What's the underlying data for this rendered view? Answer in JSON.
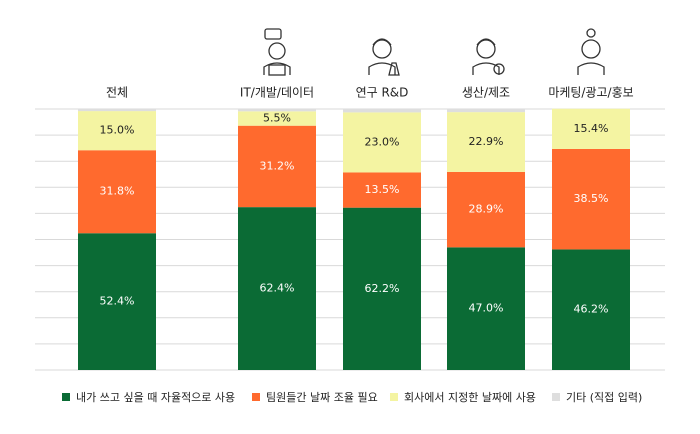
{
  "chart_data": {
    "type": "stacked-bar",
    "categories": [
      "전체",
      "IT/개발/데이터",
      "연구 R&D",
      "생산/제조",
      "마케팅/광고/홍보"
    ],
    "series": [
      {
        "name": "내가 쓰고 싶을 때 자율적으로 사용",
        "color": "#0b6b35",
        "values": [
          52.4,
          62.4,
          62.2,
          47.0,
          46.2
        ],
        "value_labels": [
          "52.4%",
          "62.4%",
          "62.2%",
          "47.0%",
          "46.2%"
        ]
      },
      {
        "name": "팀원들간 날짜 조율 필요",
        "color": "#ff6a2e",
        "values": [
          31.8,
          31.2,
          13.5,
          28.9,
          38.5
        ],
        "value_labels": [
          "31.8%",
          "31.2%",
          "13.5%",
          "28.9%",
          "38.5%"
        ]
      },
      {
        "name": "회사에서 지정한 날짜에 사용",
        "color": "#f4f4a2",
        "values": [
          15.0,
          5.5,
          23.0,
          22.9,
          15.4
        ],
        "value_labels": [
          "15.0%",
          "5.5%",
          "23.0%",
          "22.9%",
          "15.4%"
        ]
      },
      {
        "name": "기타 (직접 입력)",
        "color": "#dedede",
        "values": [
          0.8,
          0.9,
          1.3,
          1.2,
          0
        ]
      }
    ],
    "ylim": [
      0,
      100
    ],
    "yticks": [
      0,
      10,
      20,
      30,
      40,
      50,
      60,
      70,
      80,
      90,
      100
    ],
    "grid": true,
    "legend": "bottom"
  }
}
